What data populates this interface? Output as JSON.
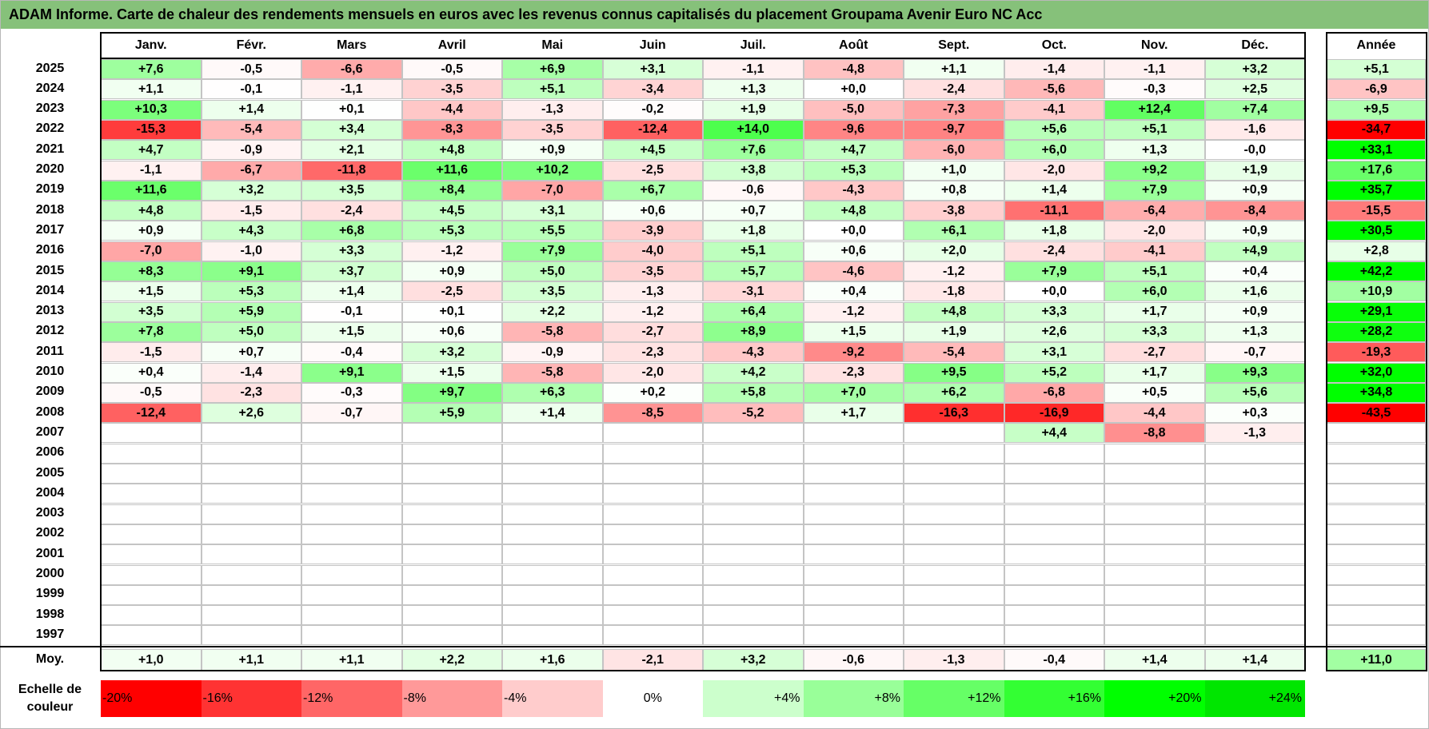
{
  "title": "ADAM Informe. Carte de chaleur des rendements mensuels en euros avec les revenus connus capitalisés du placement Groupama Avenir Euro NC Acc",
  "chart_data": {
    "type": "heatmap",
    "columns": [
      "Janv.",
      "Févr.",
      "Mars",
      "Avril",
      "Mai",
      "Juin",
      "Juil.",
      "Août",
      "Sept.",
      "Oct.",
      "Nov.",
      "Déc."
    ],
    "annual_label": "Année",
    "rows": [
      {
        "year": "2025",
        "months": [
          "+7,6",
          "-0,5",
          "-6,6",
          "-0,5",
          "+6,9",
          "+3,1",
          "-1,1",
          "-4,8",
          "+1,1",
          "-1,4",
          "-1,1",
          "+3,2"
        ],
        "annual": "+5,1"
      },
      {
        "year": "2024",
        "months": [
          "+1,1",
          "-0,1",
          "-1,1",
          "-3,5",
          "+5,1",
          "-3,4",
          "+1,3",
          "+0,0",
          "-2,4",
          "-5,6",
          "-0,3",
          "+2,5"
        ],
        "annual": "-6,9"
      },
      {
        "year": "2023",
        "months": [
          "+10,3",
          "+1,4",
          "+0,1",
          "-4,4",
          "-1,3",
          "-0,2",
          "+1,9",
          "-5,0",
          "-7,3",
          "-4,1",
          "+12,4",
          "+7,4"
        ],
        "annual": "+9,5"
      },
      {
        "year": "2022",
        "months": [
          "-15,3",
          "-5,4",
          "+3,4",
          "-8,3",
          "-3,5",
          "-12,4",
          "+14,0",
          "-9,6",
          "-9,7",
          "+5,6",
          "+5,1",
          "-1,6"
        ],
        "annual": "-34,7"
      },
      {
        "year": "2021",
        "months": [
          "+4,7",
          "-0,9",
          "+2,1",
          "+4,8",
          "+0,9",
          "+4,5",
          "+7,6",
          "+4,7",
          "-6,0",
          "+6,0",
          "+1,3",
          "-0,0"
        ],
        "annual": "+33,1"
      },
      {
        "year": "2020",
        "months": [
          "-1,1",
          "-6,7",
          "-11,8",
          "+11,6",
          "+10,2",
          "-2,5",
          "+3,8",
          "+5,3",
          "+1,0",
          "-2,0",
          "+9,2",
          "+1,9"
        ],
        "annual": "+17,6"
      },
      {
        "year": "2019",
        "months": [
          "+11,6",
          "+3,2",
          "+3,5",
          "+8,4",
          "-7,0",
          "+6,7",
          "-0,6",
          "-4,3",
          "+0,8",
          "+1,4",
          "+7,9",
          "+0,9"
        ],
        "annual": "+35,7"
      },
      {
        "year": "2018",
        "months": [
          "+4,8",
          "-1,5",
          "-2,4",
          "+4,5",
          "+3,1",
          "+0,6",
          "+0,7",
          "+4,8",
          "-3,8",
          "-11,1",
          "-6,4",
          "-8,4"
        ],
        "annual": "-15,5"
      },
      {
        "year": "2017",
        "months": [
          "+0,9",
          "+4,3",
          "+6,8",
          "+5,3",
          "+5,5",
          "-3,9",
          "+1,8",
          "+0,0",
          "+6,1",
          "+1,8",
          "-2,0",
          "+0,9"
        ],
        "annual": "+30,5"
      },
      {
        "year": "2016",
        "months": [
          "-7,0",
          "-1,0",
          "+3,3",
          "-1,2",
          "+7,9",
          "-4,0",
          "+5,1",
          "+0,6",
          "+2,0",
          "-2,4",
          "-4,1",
          "+4,9"
        ],
        "annual": "+2,8"
      },
      {
        "year": "2015",
        "months": [
          "+8,3",
          "+9,1",
          "+3,7",
          "+0,9",
          "+5,0",
          "-3,5",
          "+5,7",
          "-4,6",
          "-1,2",
          "+7,9",
          "+5,1",
          "+0,4"
        ],
        "annual": "+42,2"
      },
      {
        "year": "2014",
        "months": [
          "+1,5",
          "+5,3",
          "+1,4",
          "-2,5",
          "+3,5",
          "-1,3",
          "-3,1",
          "+0,4",
          "-1,8",
          "+0,0",
          "+6,0",
          "+1,6"
        ],
        "annual": "+10,9"
      },
      {
        "year": "2013",
        "months": [
          "+3,5",
          "+5,9",
          "-0,1",
          "+0,1",
          "+2,2",
          "-1,2",
          "+6,4",
          "-1,2",
          "+4,8",
          "+3,3",
          "+1,7",
          "+0,9"
        ],
        "annual": "+29,1"
      },
      {
        "year": "2012",
        "months": [
          "+7,8",
          "+5,0",
          "+1,5",
          "+0,6",
          "-5,8",
          "-2,7",
          "+8,9",
          "+1,5",
          "+1,9",
          "+2,6",
          "+3,3",
          "+1,3"
        ],
        "annual": "+28,2"
      },
      {
        "year": "2011",
        "months": [
          "-1,5",
          "+0,7",
          "-0,4",
          "+3,2",
          "-0,9",
          "-2,3",
          "-4,3",
          "-9,2",
          "-5,4",
          "+3,1",
          "-2,7",
          "-0,7"
        ],
        "annual": "-19,3"
      },
      {
        "year": "2010",
        "months": [
          "+0,4",
          "-1,4",
          "+9,1",
          "+1,5",
          "-5,8",
          "-2,0",
          "+4,2",
          "-2,3",
          "+9,5",
          "+5,2",
          "+1,7",
          "+9,3"
        ],
        "annual": "+32,0"
      },
      {
        "year": "2009",
        "months": [
          "-0,5",
          "-2,3",
          "-0,3",
          "+9,7",
          "+6,3",
          "+0,2",
          "+5,8",
          "+7,0",
          "+6,2",
          "-6,8",
          "+0,5",
          "+5,6"
        ],
        "annual": "+34,8"
      },
      {
        "year": "2008",
        "months": [
          "-12,4",
          "+2,6",
          "-0,7",
          "+5,9",
          "+1,4",
          "-8,5",
          "-5,2",
          "+1,7",
          "-16,3",
          "-16,9",
          "-4,4",
          "+0,3"
        ],
        "annual": "-43,5"
      },
      {
        "year": "2007",
        "months": [
          "",
          "",
          "",
          "",
          "",
          "",
          "",
          "",
          "",
          "+4,4",
          "-8,8",
          "-1,3"
        ],
        "annual": ""
      },
      {
        "year": "2006",
        "months": [
          "",
          "",
          "",
          "",
          "",
          "",
          "",
          "",
          "",
          "",
          "",
          ""
        ],
        "annual": ""
      },
      {
        "year": "2005",
        "months": [
          "",
          "",
          "",
          "",
          "",
          "",
          "",
          "",
          "",
          "",
          "",
          ""
        ],
        "annual": ""
      },
      {
        "year": "2004",
        "months": [
          "",
          "",
          "",
          "",
          "",
          "",
          "",
          "",
          "",
          "",
          "",
          ""
        ],
        "annual": ""
      },
      {
        "year": "2003",
        "months": [
          "",
          "",
          "",
          "",
          "",
          "",
          "",
          "",
          "",
          "",
          "",
          ""
        ],
        "annual": ""
      },
      {
        "year": "2002",
        "months": [
          "",
          "",
          "",
          "",
          "",
          "",
          "",
          "",
          "",
          "",
          "",
          ""
        ],
        "annual": ""
      },
      {
        "year": "2001",
        "months": [
          "",
          "",
          "",
          "",
          "",
          "",
          "",
          "",
          "",
          "",
          "",
          ""
        ],
        "annual": ""
      },
      {
        "year": "2000",
        "months": [
          "",
          "",
          "",
          "",
          "",
          "",
          "",
          "",
          "",
          "",
          "",
          ""
        ],
        "annual": ""
      },
      {
        "year": "1999",
        "months": [
          "",
          "",
          "",
          "",
          "",
          "",
          "",
          "",
          "",
          "",
          "",
          ""
        ],
        "annual": ""
      },
      {
        "year": "1998",
        "months": [
          "",
          "",
          "",
          "",
          "",
          "",
          "",
          "",
          "",
          "",
          "",
          ""
        ],
        "annual": ""
      },
      {
        "year": "1997",
        "months": [
          "",
          "",
          "",
          "",
          "",
          "",
          "",
          "",
          "",
          "",
          "",
          ""
        ],
        "annual": ""
      }
    ],
    "average": {
      "label": "Moy.",
      "months": [
        "+1,0",
        "+1,1",
        "+1,1",
        "+2,2",
        "+1,6",
        "-2,1",
        "+3,2",
        "-0,6",
        "-1,3",
        "-0,4",
        "+1,4",
        "+1,4"
      ],
      "annual": "+11,0"
    },
    "scale": {
      "label": "Echelle de couleur",
      "stops": [
        {
          "label": "-20%",
          "value": -20,
          "color": "#ff0000"
        },
        {
          "label": "-16%",
          "value": -16,
          "color": "#ff3333"
        },
        {
          "label": "-12%",
          "value": -12,
          "color": "#ff6666"
        },
        {
          "label": "-8%",
          "value": -8,
          "color": "#ff9999"
        },
        {
          "label": "-4%",
          "value": -4,
          "color": "#ffcccc"
        },
        {
          "label": "0%",
          "value": 0,
          "color": "#ffffff"
        },
        {
          "label": "+4%",
          "value": 4,
          "color": "#ccffcc"
        },
        {
          "label": "+8%",
          "value": 8,
          "color": "#99ff99"
        },
        {
          "label": "+12%",
          "value": 12,
          "color": "#66ff66"
        },
        {
          "label": "+16%",
          "value": 16,
          "color": "#33ff33"
        },
        {
          "label": "+20%",
          "value": 20,
          "color": "#00ff00"
        },
        {
          "label": "+24%",
          "value": 24,
          "color": "#00e600"
        }
      ]
    }
  }
}
